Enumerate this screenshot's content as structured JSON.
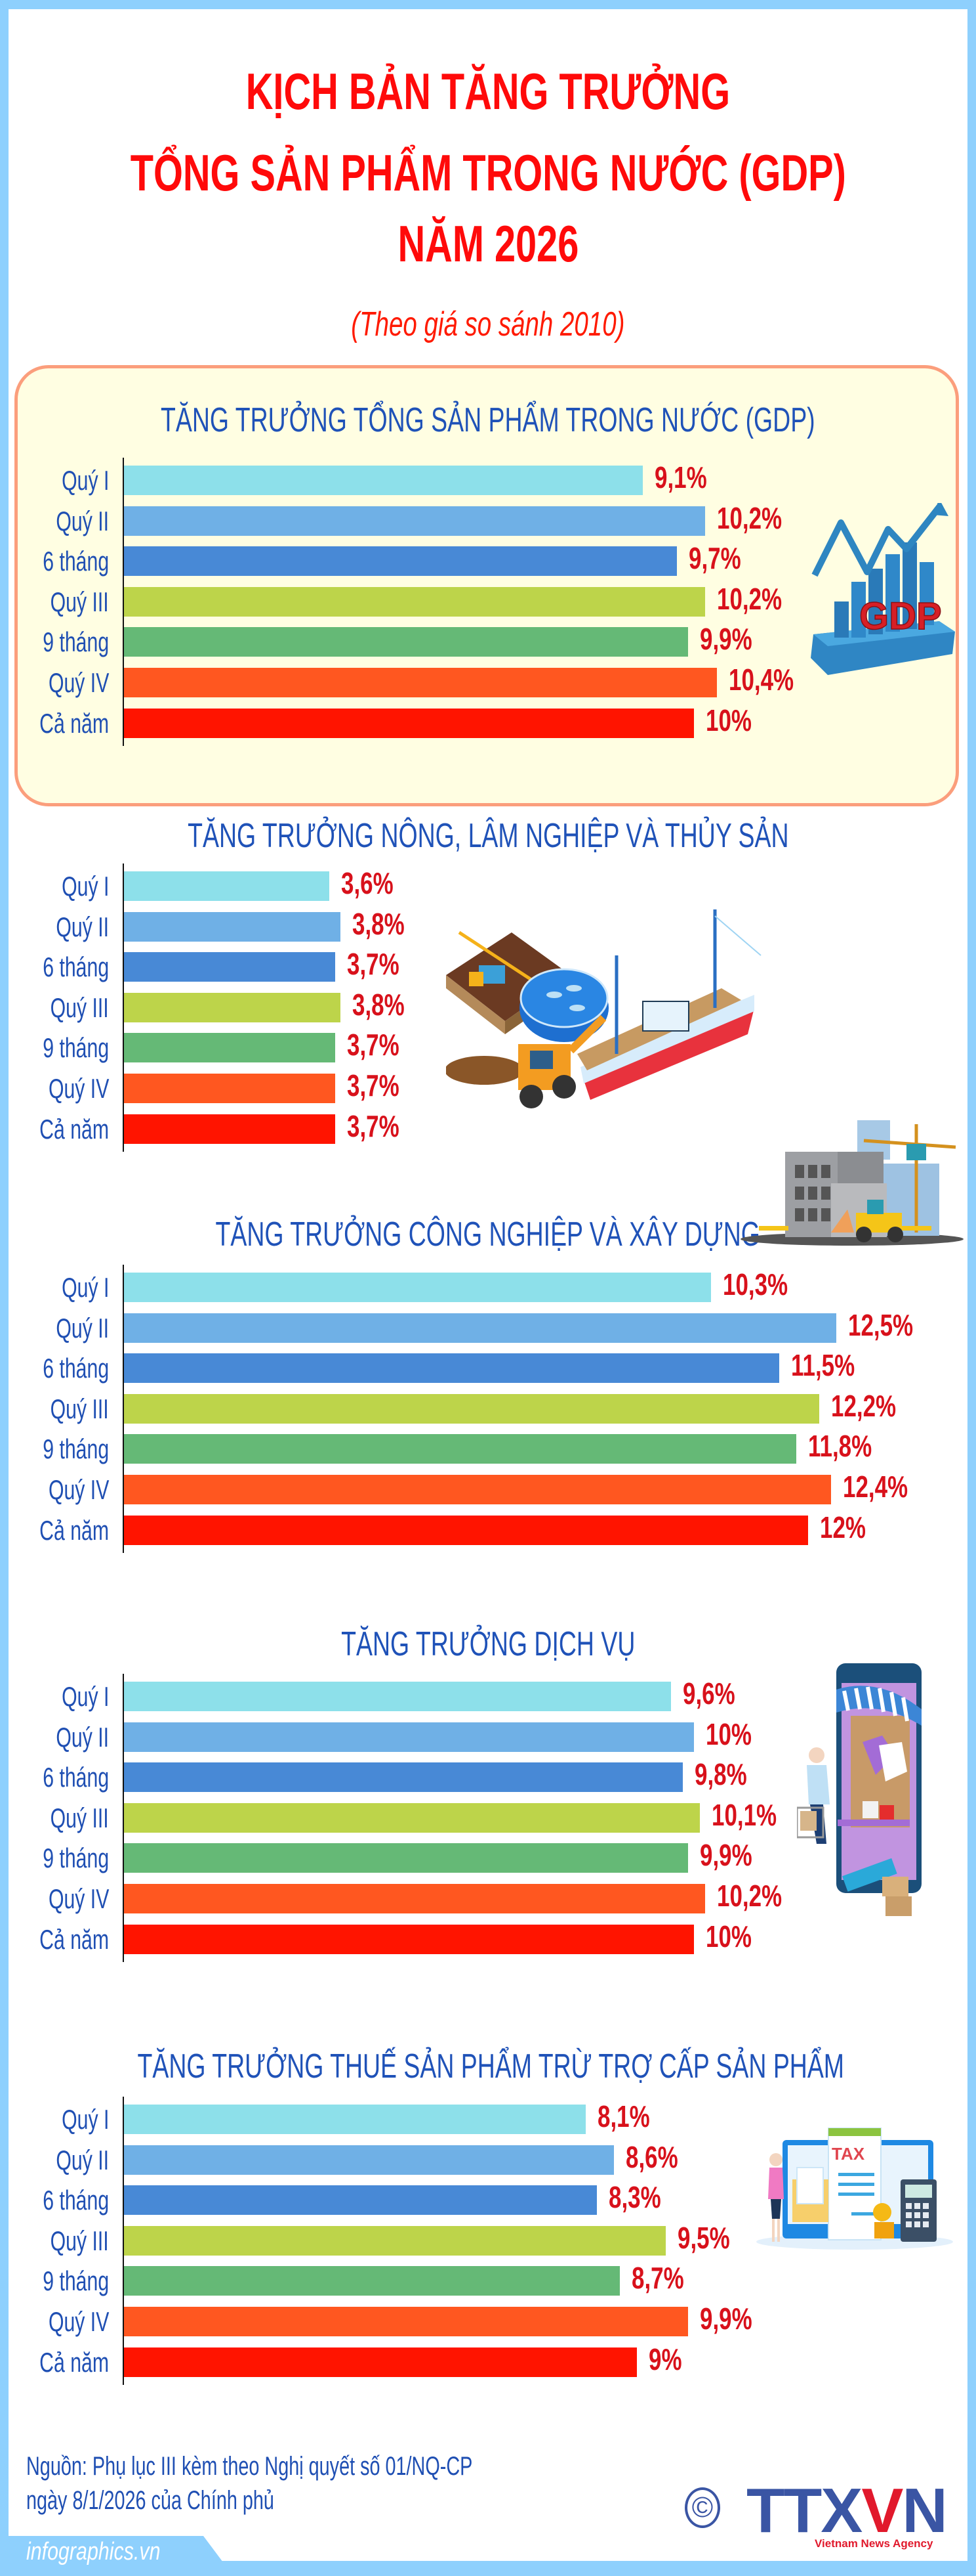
{
  "header": {
    "title_lines": [
      "KỊCH BẢN TĂNG TRƯỞNG",
      "TỔNG SẢN PHẨM TRONG NƯỚC (GDP)",
      "NĂM 2026"
    ],
    "subtitle": "(Theo giá so sánh 2010)"
  },
  "categories": [
    "Quý I",
    "Quý II",
    "6 tháng",
    "Quý III",
    "9 tháng",
    "Quý IV",
    "Cả năm"
  ],
  "bar_colors": [
    "#8de0ea",
    "#6fb0e6",
    "#4889d6",
    "#bdd44a",
    "#65b976",
    "#ff5720",
    "#ff1400"
  ],
  "value_color": "#d8111b",
  "title_color": "#ff0a0a",
  "section_title_color": "#1f52b8",
  "sections": [
    {
      "title": "TĂNG TRƯỞNG TỔNG SẢN PHẨM TRONG NƯỚC (GDP)",
      "icon": "gdp-growth-chart-icon",
      "values": [
        9.1,
        10.2,
        9.7,
        10.2,
        9.9,
        10.4,
        10
      ],
      "labels": [
        "9,1%",
        "10,2%",
        "9,7%",
        "10,2%",
        "9,9%",
        "10,4%",
        "10%"
      ]
    },
    {
      "title": "TĂNG TRƯỞNG NÔNG, LÂM NGHIỆP VÀ THỦY SẢN",
      "icon": "agriculture-forestry-fishery-icon",
      "values": [
        3.6,
        3.8,
        3.7,
        3.8,
        3.7,
        3.7,
        3.7
      ],
      "labels": [
        "3,6%",
        "3,8%",
        "3,7%",
        "3,8%",
        "3,7%",
        "3,7%",
        "3,7%"
      ]
    },
    {
      "title": "TĂNG TRƯỞNG CÔNG NGHIỆP VÀ XÂY DỰNG",
      "icon": "construction-site-icon",
      "values": [
        10.3,
        12.5,
        11.5,
        12.2,
        11.8,
        12.4,
        12
      ],
      "labels": [
        "10,3%",
        "12,5%",
        "11,5%",
        "12,2%",
        "11,8%",
        "12,4%",
        "12%"
      ]
    },
    {
      "title": "TĂNG TRƯỞNG DỊCH VỤ",
      "icon": "online-shopping-icon",
      "values": [
        9.6,
        10,
        9.8,
        10.1,
        9.9,
        10.2,
        10
      ],
      "labels": [
        "9,6%",
        "10%",
        "9,8%",
        "10,1%",
        "9,9%",
        "10,2%",
        "10%"
      ]
    },
    {
      "title": "TĂNG TRƯỞNG THUẾ SẢN PHẨM TRỪ TRỢ CẤP SẢN PHẨM",
      "icon": "tax-calculator-icon",
      "values": [
        8.1,
        8.6,
        8.3,
        9.5,
        8.7,
        9.9,
        9
      ],
      "labels": [
        "8,1%",
        "8,6%",
        "8,3%",
        "9,5%",
        "8,7%",
        "9,9%",
        "9%"
      ]
    }
  ],
  "footer": {
    "source_line1": "Nguồn: Phụ lục III kèm theo Nghị quyết số 01/NQ-CP",
    "source_line2": "ngày 8/1/2026 của Chính phủ",
    "site": "infographics.vn",
    "copyright_symbol": "©",
    "logo_text_a": "TTX",
    "logo_text_v": "V",
    "logo_text_b": "N",
    "logo_subtitle": "Vietnam News Agency"
  },
  "chart_data": [
    {
      "type": "bar",
      "orientation": "horizontal",
      "title": "TĂNG TRƯỞNG TỔNG SẢN PHẨM TRONG NƯỚC (GDP)",
      "categories": [
        "Quý I",
        "Quý II",
        "6 tháng",
        "Quý III",
        "9 tháng",
        "Quý IV",
        "Cả năm"
      ],
      "values": [
        9.1,
        10.2,
        9.7,
        10.2,
        9.9,
        10.4,
        10
      ],
      "unit": "%",
      "xlabel": "",
      "ylabel": "",
      "grid": false
    },
    {
      "type": "bar",
      "orientation": "horizontal",
      "title": "TĂNG TRƯỞNG NÔNG, LÂM NGHIỆP VÀ THỦY SẢN",
      "categories": [
        "Quý I",
        "Quý II",
        "6 tháng",
        "Quý III",
        "9 tháng",
        "Quý IV",
        "Cả năm"
      ],
      "values": [
        3.6,
        3.8,
        3.7,
        3.8,
        3.7,
        3.7,
        3.7
      ],
      "unit": "%",
      "xlabel": "",
      "ylabel": "",
      "grid": false
    },
    {
      "type": "bar",
      "orientation": "horizontal",
      "title": "TĂNG TRƯỞNG CÔNG NGHIỆP VÀ XÂY DỰNG",
      "categories": [
        "Quý I",
        "Quý II",
        "6 tháng",
        "Quý III",
        "9 tháng",
        "Quý IV",
        "Cả năm"
      ],
      "values": [
        10.3,
        12.5,
        11.5,
        12.2,
        11.8,
        12.4,
        12
      ],
      "unit": "%",
      "xlabel": "",
      "ylabel": "",
      "grid": false
    },
    {
      "type": "bar",
      "orientation": "horizontal",
      "title": "TĂNG TRƯỞNG DỊCH VỤ",
      "categories": [
        "Quý I",
        "Quý II",
        "6 tháng",
        "Quý III",
        "9 tháng",
        "Quý IV",
        "Cả năm"
      ],
      "values": [
        9.6,
        10,
        9.8,
        10.1,
        9.9,
        10.2,
        10
      ],
      "unit": "%",
      "xlabel": "",
      "ylabel": "",
      "grid": false
    },
    {
      "type": "bar",
      "orientation": "horizontal",
      "title": "TĂNG TRƯỞNG THUẾ SẢN PHẨM TRỪ TRỢ CẤP SẢN PHẨM",
      "categories": [
        "Quý I",
        "Quý II",
        "6 tháng",
        "Quý III",
        "9 tháng",
        "Quý IV",
        "Cả năm"
      ],
      "values": [
        8.1,
        8.6,
        8.3,
        9.5,
        8.7,
        9.9,
        9
      ],
      "unit": "%",
      "xlabel": "",
      "ylabel": "",
      "grid": false
    }
  ]
}
